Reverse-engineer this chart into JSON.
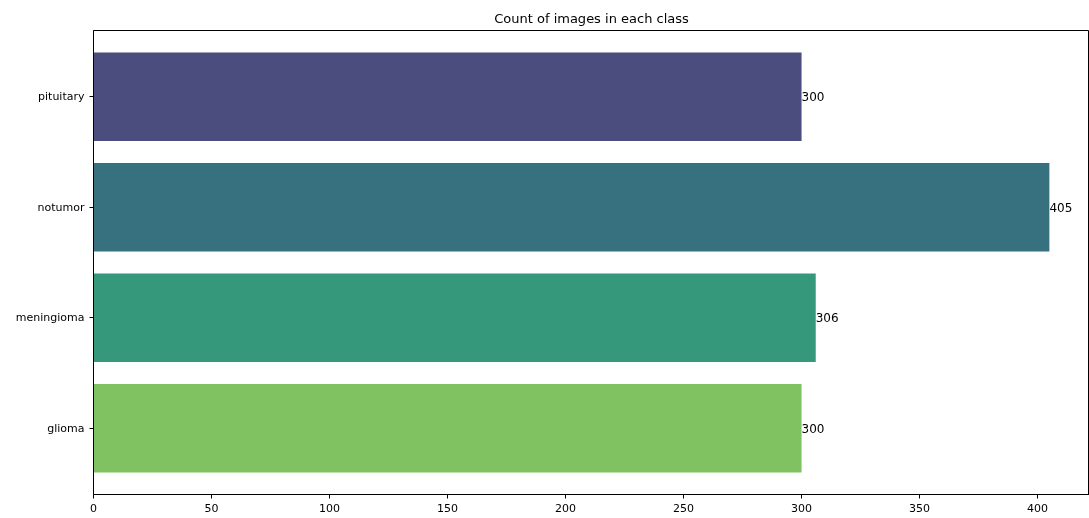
{
  "chart_data": {
    "type": "bar",
    "orientation": "horizontal",
    "title": "Count of images in each class",
    "categories": [
      "pituitary",
      "notumor",
      "meningioma",
      "glioma"
    ],
    "values": [
      300,
      405,
      306,
      300
    ],
    "colors": [
      "#4a4d7d",
      "#37717f",
      "#35987b",
      "#80c161"
    ],
    "xlim": [
      0,
      422
    ],
    "xticks": [
      0,
      50,
      100,
      150,
      200,
      250,
      300,
      350,
      400
    ],
    "data_labels": true,
    "grid": false
  }
}
